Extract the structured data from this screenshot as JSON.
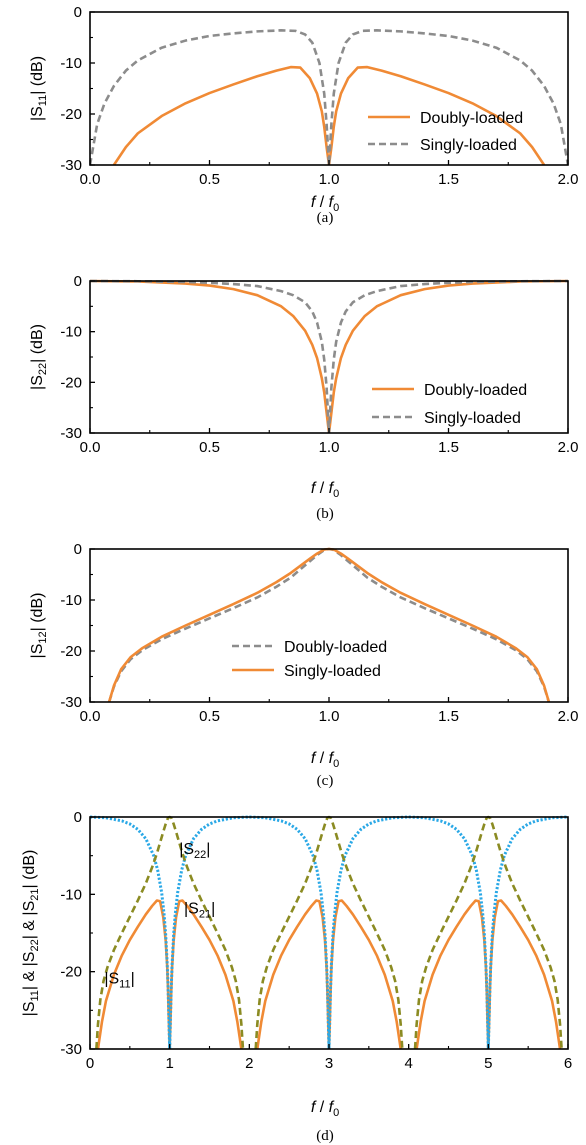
{
  "colors": {
    "orange": "#F08A35",
    "gray": "#8C8C8C",
    "olive": "#8B8B22",
    "blue": "#2AA8E6"
  },
  "chart_data": [
    {
      "type": "line",
      "caption": "(a)",
      "xlabel": {
        "main": "f",
        "sep": " / ",
        "base": "f",
        "sub": "0"
      },
      "ylabel": {
        "pre": "|S",
        "sub": "11",
        "post": "| (dB)"
      },
      "xlim": [
        0,
        2
      ],
      "ylim": [
        -30,
        0
      ],
      "xticks": [
        "0.0",
        "0.5",
        "1.0",
        "1.5",
        "2.0"
      ],
      "yticks": [
        "0",
        "-10",
        "-20",
        "-30"
      ],
      "legend_position": "lower-right",
      "series": [
        {
          "name": "Doubly-loaded",
          "color": "orange",
          "dash": "solid",
          "x": [
            0.1,
            0.15,
            0.2,
            0.3,
            0.4,
            0.5,
            0.6,
            0.7,
            0.78,
            0.84,
            0.88,
            0.92,
            0.95,
            0.97,
            0.98,
            0.99,
            1.0,
            1.01,
            1.02,
            1.03,
            1.05,
            1.08,
            1.12,
            1.16,
            1.22,
            1.3,
            1.4,
            1.5,
            1.6,
            1.7,
            1.8,
            1.85,
            1.9
          ],
          "y": [
            -30,
            -26.5,
            -23.8,
            -20.4,
            -17.9,
            -15.9,
            -14.2,
            -12.6,
            -11.5,
            -10.8,
            -10.9,
            -13.0,
            -16.0,
            -19.5,
            -22.5,
            -26.5,
            -30,
            -26.5,
            -22.5,
            -19.5,
            -16.0,
            -13.0,
            -10.9,
            -10.8,
            -11.5,
            -12.6,
            -14.2,
            -15.9,
            -17.9,
            -20.4,
            -23.8,
            -26.5,
            -30
          ]
        },
        {
          "name": "Singly-loaded",
          "color": "gray",
          "dash": "dashed",
          "x": [
            0.0,
            0.03,
            0.06,
            0.1,
            0.15,
            0.2,
            0.3,
            0.4,
            0.5,
            0.6,
            0.7,
            0.8,
            0.86,
            0.9,
            0.93,
            0.96,
            0.98,
            0.99,
            1.0,
            1.01,
            1.02,
            1.04,
            1.07,
            1.1,
            1.14,
            1.2,
            1.3,
            1.4,
            1.5,
            1.6,
            1.7,
            1.8,
            1.85,
            1.9,
            1.94,
            1.97,
            2.0
          ],
          "y": [
            -30,
            -22.0,
            -18.0,
            -14.5,
            -11.5,
            -9.5,
            -7.0,
            -5.6,
            -4.7,
            -4.2,
            -3.8,
            -3.6,
            -3.7,
            -4.4,
            -6.0,
            -10.0,
            -16.0,
            -22.0,
            -30,
            -22.0,
            -16.0,
            -10.0,
            -6.0,
            -4.4,
            -3.7,
            -3.6,
            -3.8,
            -4.2,
            -4.7,
            -5.6,
            -7.0,
            -9.5,
            -11.5,
            -14.5,
            -18.0,
            -22.0,
            -30
          ]
        }
      ]
    },
    {
      "type": "line",
      "caption": "(b)",
      "xlabel": {
        "main": "f",
        "sep": " / ",
        "base": "f",
        "sub": "0"
      },
      "ylabel": {
        "pre": "|S",
        "sub": "22",
        "post": "| (dB)"
      },
      "xlim": [
        0,
        2
      ],
      "ylim": [
        -30,
        0
      ],
      "xticks": [
        "0.0",
        "0.5",
        "1.0",
        "1.5",
        "2.0"
      ],
      "yticks": [
        "0",
        "-10",
        "-20",
        "-30"
      ],
      "legend_position": "lower-right",
      "series": [
        {
          "name": "Doubly-loaded",
          "color": "orange",
          "dash": "solid",
          "x": [
            0.0,
            0.2,
            0.4,
            0.5,
            0.6,
            0.7,
            0.8,
            0.85,
            0.9,
            0.93,
            0.95,
            0.97,
            0.98,
            0.99,
            1.0,
            1.01,
            1.02,
            1.03,
            1.05,
            1.07,
            1.1,
            1.15,
            1.2,
            1.3,
            1.4,
            1.5,
            1.6,
            1.8,
            2.0
          ],
          "y": [
            0,
            -0.1,
            -0.5,
            -0.9,
            -1.6,
            -2.8,
            -5.0,
            -6.9,
            -9.8,
            -12.6,
            -15.2,
            -19.2,
            -22.0,
            -26.0,
            -30,
            -26.0,
            -22.0,
            -19.2,
            -15.2,
            -12.6,
            -9.8,
            -6.9,
            -5.0,
            -2.8,
            -1.6,
            -0.9,
            -0.5,
            -0.1,
            0
          ]
        },
        {
          "name": "Singly-loaded",
          "color": "gray",
          "dash": "dashed",
          "x": [
            0.0,
            0.2,
            0.4,
            0.5,
            0.6,
            0.7,
            0.8,
            0.85,
            0.9,
            0.93,
            0.95,
            0.97,
            0.98,
            0.99,
            1.0,
            1.01,
            1.02,
            1.03,
            1.05,
            1.07,
            1.1,
            1.15,
            1.2,
            1.3,
            1.4,
            1.5,
            1.6,
            1.8,
            2.0
          ],
          "y": [
            0,
            -0.05,
            -0.2,
            -0.35,
            -0.6,
            -1.0,
            -2.0,
            -2.8,
            -4.2,
            -6.0,
            -8.2,
            -12.0,
            -15.5,
            -21.0,
            -30,
            -21.0,
            -15.5,
            -12.0,
            -8.2,
            -6.0,
            -4.2,
            -2.8,
            -2.0,
            -1.0,
            -0.6,
            -0.35,
            -0.2,
            -0.05,
            0
          ]
        }
      ]
    },
    {
      "type": "line",
      "caption": "(c)",
      "xlabel": {
        "main": "f",
        "sep": " / ",
        "base": "f",
        "sub": "0"
      },
      "ylabel": {
        "pre": "|S",
        "sub": "12",
        "post": "| (dB)"
      },
      "xlim": [
        0,
        2
      ],
      "ylim": [
        -30,
        0
      ],
      "xticks": [
        "0.0",
        "0.5",
        "1.0",
        "1.5",
        "2.0"
      ],
      "yticks": [
        "0",
        "-10",
        "-20",
        "-30"
      ],
      "legend_position": "lower-center",
      "series": [
        {
          "name": "Doubly-loaded",
          "color": "gray",
          "dash": "dashed",
          "x": [
            0.08,
            0.1,
            0.13,
            0.17,
            0.22,
            0.3,
            0.4,
            0.5,
            0.6,
            0.7,
            0.78,
            0.84,
            0.88,
            0.92,
            0.95,
            0.98,
            1.0,
            1.02,
            1.05,
            1.08,
            1.12,
            1.16,
            1.22,
            1.3,
            1.4,
            1.5,
            1.6,
            1.7,
            1.78,
            1.83,
            1.87,
            1.9,
            1.92
          ],
          "y": [
            -30,
            -27.0,
            -24.0,
            -21.6,
            -19.8,
            -17.7,
            -15.6,
            -13.6,
            -11.6,
            -9.5,
            -7.4,
            -5.6,
            -4.0,
            -2.4,
            -1.2,
            -0.2,
            0,
            -0.2,
            -1.2,
            -2.4,
            -4.0,
            -5.6,
            -7.4,
            -9.5,
            -11.6,
            -13.6,
            -15.6,
            -17.7,
            -19.8,
            -21.6,
            -24.0,
            -27.0,
            -30
          ]
        },
        {
          "name": "Singly-loaded",
          "color": "orange",
          "dash": "solid",
          "x": [
            0.08,
            0.1,
            0.13,
            0.17,
            0.22,
            0.3,
            0.4,
            0.5,
            0.6,
            0.7,
            0.78,
            0.84,
            0.88,
            0.92,
            0.95,
            0.98,
            1.0,
            1.02,
            1.05,
            1.08,
            1.12,
            1.16,
            1.22,
            1.3,
            1.4,
            1.5,
            1.6,
            1.7,
            1.78,
            1.83,
            1.87,
            1.9,
            1.92
          ],
          "y": [
            -30,
            -26.8,
            -23.6,
            -21.2,
            -19.4,
            -17.2,
            -15.0,
            -12.9,
            -10.8,
            -8.6,
            -6.5,
            -4.7,
            -3.3,
            -1.9,
            -0.9,
            -0.1,
            0,
            -0.1,
            -0.9,
            -1.9,
            -3.3,
            -4.7,
            -6.5,
            -8.6,
            -10.8,
            -12.9,
            -15.0,
            -17.2,
            -19.4,
            -21.2,
            -23.6,
            -26.8,
            -30
          ]
        }
      ]
    },
    {
      "type": "line",
      "caption": "(d)",
      "xlabel": {
        "main": "f",
        "sep": " / ",
        "base": "f",
        "sub": "0"
      },
      "ylabel": {
        "p1": "|S",
        "s1": "11",
        "p2": "| & |S",
        "s2": "22",
        "p3": "| & |S",
        "s3": "21",
        "p4": "| (dB)"
      },
      "xlim": [
        0,
        6
      ],
      "ylim": [
        -30,
        0
      ],
      "xticks": [
        "0",
        "1",
        "2",
        "3",
        "4",
        "5",
        "6"
      ],
      "yticks": [
        "0",
        "-10",
        "-20",
        "-30"
      ],
      "annotations": [
        {
          "pre": "|S",
          "sub": "22",
          "post": "|",
          "x": 1.12,
          "y": -4.8
        },
        {
          "pre": "|S",
          "sub": "21",
          "post": "|",
          "x": 1.18,
          "y": -12.5
        },
        {
          "pre": "|S",
          "sub": "11",
          "post": "|",
          "x": 0.18,
          "y": -21.5
        }
      ],
      "series": [
        {
          "name": "|S11|",
          "color": "orange",
          "dash": "solid",
          "base_x": [
            0.1,
            0.15,
            0.2,
            0.3,
            0.4,
            0.5,
            0.6,
            0.7,
            0.78,
            0.84,
            0.88,
            0.92,
            0.95,
            0.97,
            0.98,
            0.99,
            1.0,
            1.01,
            1.02,
            1.03,
            1.05,
            1.08,
            1.12,
            1.16,
            1.22,
            1.3,
            1.4,
            1.5,
            1.6,
            1.7,
            1.8,
            1.85,
            1.9
          ],
          "base_y": [
            -30,
            -26.5,
            -23.8,
            -20.4,
            -17.9,
            -15.9,
            -14.2,
            -12.6,
            -11.5,
            -10.8,
            -10.9,
            -13.0,
            -16.0,
            -19.5,
            -22.5,
            -26.5,
            -30,
            -26.5,
            -22.5,
            -19.5,
            -16.0,
            -13.0,
            -10.9,
            -10.8,
            -11.5,
            -12.6,
            -14.2,
            -15.9,
            -17.9,
            -20.4,
            -23.8,
            -26.5,
            -30
          ],
          "periods": [
            0,
            2,
            4
          ]
        },
        {
          "name": "|S22|",
          "color": "blue",
          "dash": "dotted",
          "base_x": [
            0.0,
            0.2,
            0.4,
            0.5,
            0.6,
            0.7,
            0.8,
            0.85,
            0.9,
            0.93,
            0.95,
            0.97,
            0.98,
            0.99,
            1.0,
            1.01,
            1.02,
            1.03,
            1.05,
            1.07,
            1.1,
            1.15,
            1.2,
            1.3,
            1.4,
            1.5,
            1.6,
            1.8,
            2.0
          ],
          "base_y": [
            0,
            -0.1,
            -0.5,
            -0.9,
            -1.6,
            -2.8,
            -5.0,
            -6.9,
            -9.8,
            -12.6,
            -15.2,
            -19.2,
            -22.0,
            -26.0,
            -30,
            -26.0,
            -22.0,
            -19.2,
            -15.2,
            -12.6,
            -9.8,
            -6.9,
            -5.0,
            -2.8,
            -1.6,
            -0.9,
            -0.5,
            -0.1,
            0
          ],
          "periods": [
            0,
            2,
            4
          ]
        },
        {
          "name": "|S21|",
          "color": "olive",
          "dash": "dashed",
          "base_x": [
            0.08,
            0.1,
            0.13,
            0.17,
            0.22,
            0.3,
            0.4,
            0.5,
            0.6,
            0.7,
            0.78,
            0.84,
            0.88,
            0.92,
            0.95,
            0.98,
            1.0,
            1.02,
            1.05,
            1.08,
            1.12,
            1.16,
            1.22,
            1.3,
            1.4,
            1.5,
            1.6,
            1.7,
            1.78,
            1.83,
            1.87,
            1.9,
            1.92
          ],
          "base_y": [
            -30,
            -26.8,
            -23.6,
            -21.2,
            -19.4,
            -17.2,
            -15.0,
            -12.9,
            -10.8,
            -8.6,
            -6.5,
            -4.7,
            -3.3,
            -1.9,
            -0.9,
            -0.1,
            0,
            -0.1,
            -0.9,
            -1.9,
            -3.3,
            -4.7,
            -6.5,
            -8.6,
            -10.8,
            -12.9,
            -15.0,
            -17.2,
            -19.4,
            -21.2,
            -23.6,
            -26.8,
            -30
          ],
          "periods": [
            0,
            2,
            4
          ]
        }
      ]
    }
  ]
}
